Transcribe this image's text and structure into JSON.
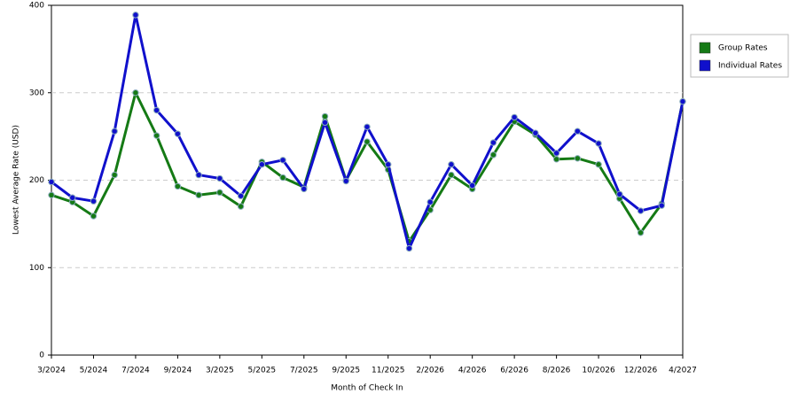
{
  "chart_data": {
    "type": "line",
    "x_label": "Month of Check In",
    "y_label": "Lowest Average Rate (USD)",
    "categories": [
      "3/2024",
      null,
      "5/2024",
      null,
      "7/2024",
      null,
      "9/2024",
      null,
      "3/2025",
      null,
      "5/2025",
      null,
      "7/2025",
      null,
      "9/2025",
      null,
      "11/2025",
      null,
      "2/2026",
      null,
      "4/2026",
      null,
      "6/2026",
      null,
      "8/2026",
      null,
      "10/2026",
      null,
      "12/2026",
      null,
      "4/2027"
    ],
    "series": [
      {
        "name": "Group Rates",
        "color": "#157a15",
        "values": [
          183,
          175,
          159,
          206,
          300,
          251,
          193,
          183,
          186,
          170,
          221,
          203,
          192,
          273,
          200,
          244,
          212,
          130,
          166,
          206,
          190,
          229,
          267,
          252,
          224,
          225,
          218,
          179,
          140,
          173,
          290
        ]
      },
      {
        "name": "Individual Rates",
        "color": "#1010cc",
        "values": [
          198,
          180,
          176,
          256,
          389,
          280,
          253,
          206,
          202,
          182,
          218,
          223,
          190,
          266,
          199,
          261,
          218,
          122,
          175,
          218,
          194,
          243,
          272,
          254,
          231,
          256,
          242,
          184,
          165,
          171,
          290
        ]
      }
    ],
    "ylim": [
      0,
      400
    ],
    "yticks": [
      0,
      100,
      200,
      300,
      400
    ],
    "grid": true,
    "legend": "right"
  }
}
